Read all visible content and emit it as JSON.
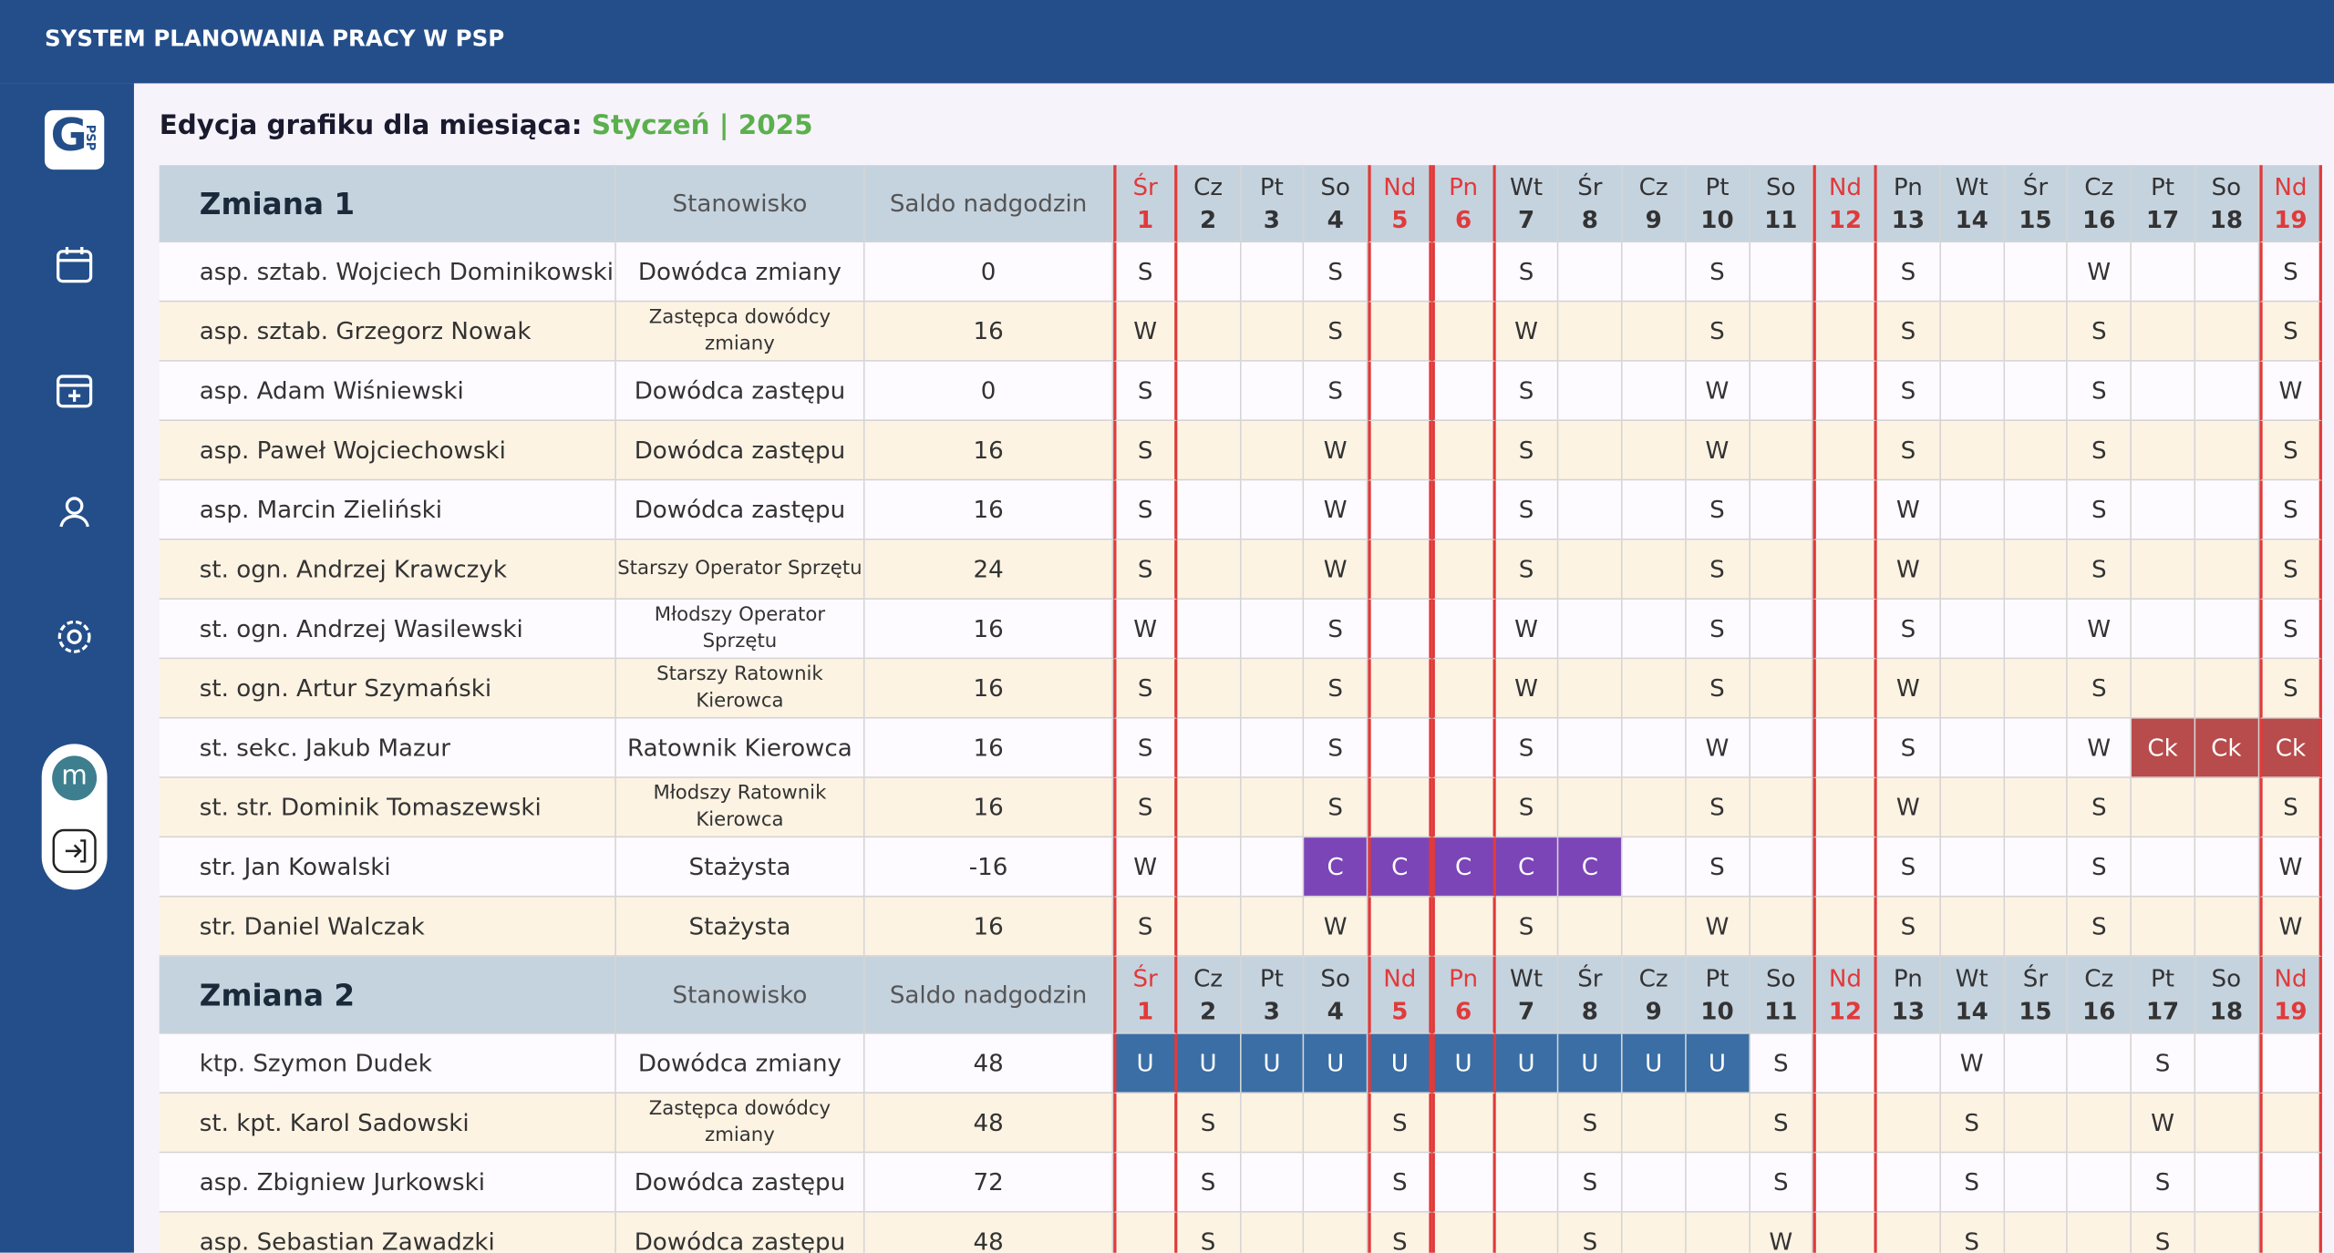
{
  "header": {
    "title": "SYSTEM PLANOWANIA PRACY W PSP"
  },
  "sidebar": {
    "logo_letter": "G",
    "logo_sub": "PSP",
    "avatar": "m"
  },
  "page": {
    "heading": "Edycja grafiku dla miesiąca:",
    "month": "Styczeń | 2025"
  },
  "schedule": {
    "position_label": "Stanowisko",
    "balance_label": "Saldo nadgodzin",
    "cell_styles": {
      "C": "#7b45b8",
      "Ck": "#b84b4b",
      "U": "#3a6ea5"
    },
    "days": [
      {
        "dow": "Śr",
        "day": 1,
        "red": true
      },
      {
        "dow": "Cz",
        "day": 2,
        "red": false
      },
      {
        "dow": "Pt",
        "day": 3,
        "red": false
      },
      {
        "dow": "So",
        "day": 4,
        "red": false
      },
      {
        "dow": "Nd",
        "day": 5,
        "red": true
      },
      {
        "dow": "Pn",
        "day": 6,
        "red": true
      },
      {
        "dow": "Wt",
        "day": 7,
        "red": false
      },
      {
        "dow": "Śr",
        "day": 8,
        "red": false
      },
      {
        "dow": "Cz",
        "day": 9,
        "red": false
      },
      {
        "dow": "Pt",
        "day": 10,
        "red": false
      },
      {
        "dow": "So",
        "day": 11,
        "red": false
      },
      {
        "dow": "Nd",
        "day": 12,
        "red": true
      },
      {
        "dow": "Pn",
        "day": 13,
        "red": false
      },
      {
        "dow": "Wt",
        "day": 14,
        "red": false
      },
      {
        "dow": "Śr",
        "day": 15,
        "red": false
      },
      {
        "dow": "Cz",
        "day": 16,
        "red": false
      },
      {
        "dow": "Pt",
        "day": 17,
        "red": false
      },
      {
        "dow": "So",
        "day": 18,
        "red": false
      },
      {
        "dow": "Nd",
        "day": 19,
        "red": true
      }
    ],
    "sections": [
      {
        "title": "Zmiana 1",
        "rows": [
          {
            "name": "asp. sztab. Wojciech Dominikowski",
            "position": "Dowódca zmiany",
            "balance": 0,
            "cells": [
              "S",
              null,
              null,
              "S",
              null,
              null,
              "S",
              null,
              null,
              "S",
              null,
              null,
              "S",
              null,
              null,
              "W",
              null,
              null,
              "S"
            ]
          },
          {
            "name": "asp. sztab. Grzegorz Nowak",
            "position": "Zastępca dowódcy zmiany",
            "balance": 16,
            "cells": [
              "W",
              null,
              null,
              "S",
              null,
              null,
              "W",
              null,
              null,
              "S",
              null,
              null,
              "S",
              null,
              null,
              "S",
              null,
              null,
              "S"
            ]
          },
          {
            "name": "asp. Adam Wiśniewski",
            "position": "Dowódca zastępu",
            "balance": 0,
            "cells": [
              "S",
              null,
              null,
              "S",
              null,
              null,
              "S",
              null,
              null,
              "W",
              null,
              null,
              "S",
              null,
              null,
              "S",
              null,
              null,
              "W"
            ]
          },
          {
            "name": "asp. Paweł Wojciechowski",
            "position": "Dowódca zastępu",
            "balance": 16,
            "cells": [
              "S",
              null,
              null,
              "W",
              null,
              null,
              "S",
              null,
              null,
              "W",
              null,
              null,
              "S",
              null,
              null,
              "S",
              null,
              null,
              "S"
            ]
          },
          {
            "name": "asp. Marcin Zieliński",
            "position": "Dowódca zastępu",
            "balance": 16,
            "cells": [
              "S",
              null,
              null,
              "W",
              null,
              null,
              "S",
              null,
              null,
              "S",
              null,
              null,
              "W",
              null,
              null,
              "S",
              null,
              null,
              "S"
            ]
          },
          {
            "name": "st. ogn. Andrzej Krawczyk",
            "position": "Starszy Operator Sprzętu",
            "balance": 24,
            "cells": [
              "S",
              null,
              null,
              "W",
              null,
              null,
              "S",
              null,
              null,
              "S",
              null,
              null,
              "W",
              null,
              null,
              "S",
              null,
              null,
              "S"
            ]
          },
          {
            "name": "st. ogn. Andrzej Wasilewski",
            "position": "Młodszy Operator Sprzętu",
            "balance": 16,
            "cells": [
              "W",
              null,
              null,
              "S",
              null,
              null,
              "W",
              null,
              null,
              "S",
              null,
              null,
              "S",
              null,
              null,
              "W",
              null,
              null,
              "S"
            ]
          },
          {
            "name": "st. ogn. Artur Szymański",
            "position": "Starszy Ratownik Kierowca",
            "balance": 16,
            "cells": [
              "S",
              null,
              null,
              "S",
              null,
              null,
              "W",
              null,
              null,
              "S",
              null,
              null,
              "W",
              null,
              null,
              "S",
              null,
              null,
              "S"
            ]
          },
          {
            "name": "st. sekc. Jakub Mazur",
            "position": "Ratownik Kierowca",
            "balance": 16,
            "cells": [
              "S",
              null,
              null,
              "S",
              null,
              null,
              "S",
              null,
              null,
              "W",
              null,
              null,
              "S",
              null,
              null,
              "W",
              "Ck",
              "Ck",
              "Ck"
            ]
          },
          {
            "name": "st. str. Dominik Tomaszewski",
            "position": "Młodszy Ratownik Kierowca",
            "balance": 16,
            "cells": [
              "S",
              null,
              null,
              "S",
              null,
              null,
              "S",
              null,
              null,
              "S",
              null,
              null,
              "W",
              null,
              null,
              "S",
              null,
              null,
              "S"
            ]
          },
          {
            "name": "str. Jan Kowalski",
            "position": "Stażysta",
            "balance": -16,
            "cells": [
              "W",
              null,
              null,
              "C",
              "C",
              "C",
              "C",
              "C",
              null,
              "S",
              null,
              null,
              "S",
              null,
              null,
              "S",
              null,
              null,
              "W"
            ]
          },
          {
            "name": "str. Daniel Walczak",
            "position": "Stażysta",
            "balance": 16,
            "cells": [
              "S",
              null,
              null,
              "W",
              null,
              null,
              "S",
              null,
              null,
              "W",
              null,
              null,
              "S",
              null,
              null,
              "S",
              null,
              null,
              "W"
            ]
          }
        ]
      },
      {
        "title": "Zmiana 2",
        "rows": [
          {
            "name": "ktp. Szymon Dudek",
            "position": "Dowódca zmiany",
            "balance": 48,
            "cells": [
              "U",
              "U",
              "U",
              "U",
              "U",
              "U",
              "U",
              "U",
              "U",
              "U",
              "S",
              null,
              null,
              "W",
              null,
              null,
              "S",
              null,
              null
            ]
          },
          {
            "name": "st. kpt. Karol Sadowski",
            "position": "Zastępca dowódcy zmiany",
            "balance": 48,
            "cells": [
              null,
              "S",
              null,
              null,
              "S",
              null,
              null,
              "S",
              null,
              null,
              "S",
              null,
              null,
              "S",
              null,
              null,
              "W",
              null,
              null
            ]
          },
          {
            "name": "asp. Zbigniew Jurkowski",
            "position": "Dowódca zastępu",
            "balance": 72,
            "cells": [
              null,
              "S",
              null,
              null,
              "S",
              null,
              null,
              "S",
              null,
              null,
              "S",
              null,
              null,
              "S",
              null,
              null,
              "S",
              null,
              null
            ]
          },
          {
            "name": "asp. Sebastian Zawadzki",
            "position": "Dowódca zastępu",
            "balance": 48,
            "cells": [
              null,
              "S",
              null,
              null,
              "S",
              null,
              null,
              "S",
              null,
              null,
              "W",
              null,
              null,
              "S",
              null,
              null,
              "S",
              null,
              null
            ]
          }
        ]
      }
    ]
  }
}
